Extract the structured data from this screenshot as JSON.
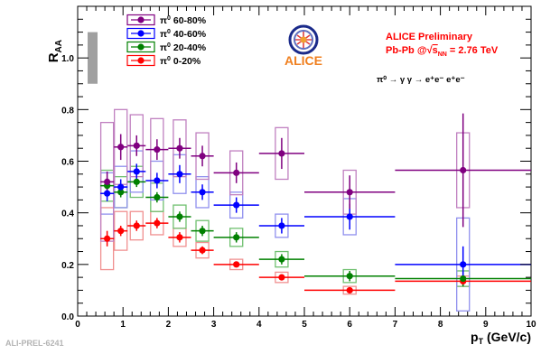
{
  "chart_data": {
    "type": "scatter",
    "xlabel_main": "p",
    "xlabel_sub": "T",
    "xlabel_unit": " (GeV/c)",
    "ylabel_main": "R",
    "ylabel_sub": "AA",
    "xlim": [
      0,
      10
    ],
    "ylim": [
      0,
      1.2
    ],
    "x_ticks": [
      "0",
      "1",
      "2",
      "3",
      "4",
      "5",
      "6",
      "7",
      "8",
      "9",
      "10"
    ],
    "y_ticks": [
      "0.0",
      "0.2",
      "0.4",
      "0.6",
      "0.8",
      "1.0"
    ],
    "grid": false,
    "legend_position": "top-left",
    "normalization_band": {
      "x": 0.25,
      "y_low": 0.9,
      "y_high": 1.1,
      "color": "#a0a0a0"
    },
    "annotation": {
      "title": "ALICE Preliminary",
      "system_prefix": "Pb-Pb @",
      "sqrt_symbol": "√",
      "sqrt_s": "s",
      "sqrt_sub": "NN",
      "energy": " = 2.76 TeV",
      "decay_channel": "π⁰ → γ γ → e⁺e⁻ e⁺e⁻",
      "color": "#ff0000"
    },
    "logo_text": "ALICE",
    "series": [
      {
        "name": "60-80%",
        "prefix": "π",
        "sup": "0",
        "color": "#800080",
        "sys_color": "#c080c0",
        "points": [
          {
            "x": 0.65,
            "xerr": 0.15,
            "y": 0.52,
            "yerr": 0.04,
            "ysys": 0.23
          },
          {
            "x": 0.95,
            "xerr": 0.15,
            "y": 0.655,
            "yerr": 0.05,
            "ysys": 0.145
          },
          {
            "x": 1.3,
            "xerr": 0.2,
            "y": 0.66,
            "yerr": 0.04,
            "ysys": 0.12
          },
          {
            "x": 1.75,
            "xerr": 0.25,
            "y": 0.645,
            "yerr": 0.04,
            "ysys": 0.12
          },
          {
            "x": 2.25,
            "xerr": 0.25,
            "y": 0.65,
            "yerr": 0.04,
            "ysys": 0.11
          },
          {
            "x": 2.75,
            "xerr": 0.25,
            "y": 0.62,
            "yerr": 0.04,
            "ysys": 0.09
          },
          {
            "x": 3.5,
            "xerr": 0.5,
            "y": 0.555,
            "yerr": 0.04,
            "ysys": 0.085
          },
          {
            "x": 4.5,
            "xerr": 0.5,
            "y": 0.63,
            "yerr": 0.06,
            "ysys": 0.1
          },
          {
            "x": 6.0,
            "xerr": 1.0,
            "y": 0.48,
            "yerr": 0.065,
            "ysys": 0.085
          },
          {
            "x": 8.5,
            "xerr": 1.5,
            "y": 0.565,
            "yerr": 0.22,
            "ysys": 0.145
          }
        ]
      },
      {
        "name": "40-60%",
        "prefix": "π",
        "sup": "0",
        "color": "#0000ff",
        "sys_color": "#9090ee",
        "points": [
          {
            "x": 0.65,
            "xerr": 0.15,
            "y": 0.475,
            "yerr": 0.03,
            "ysys": 0.08
          },
          {
            "x": 0.95,
            "xerr": 0.15,
            "y": 0.5,
            "yerr": 0.03,
            "ysys": 0.08
          },
          {
            "x": 1.3,
            "xerr": 0.2,
            "y": 0.56,
            "yerr": 0.03,
            "ysys": 0.08
          },
          {
            "x": 1.75,
            "xerr": 0.25,
            "y": 0.525,
            "yerr": 0.03,
            "ysys": 0.075
          },
          {
            "x": 2.25,
            "xerr": 0.25,
            "y": 0.55,
            "yerr": 0.035,
            "ysys": 0.075
          },
          {
            "x": 2.75,
            "xerr": 0.25,
            "y": 0.48,
            "yerr": 0.03,
            "ysys": 0.06
          },
          {
            "x": 3.5,
            "xerr": 0.5,
            "y": 0.43,
            "yerr": 0.03,
            "ysys": 0.05
          },
          {
            "x": 4.5,
            "xerr": 0.5,
            "y": 0.35,
            "yerr": 0.03,
            "ysys": 0.045
          },
          {
            "x": 6.0,
            "xerr": 1.0,
            "y": 0.385,
            "yerr": 0.05,
            "ysys": 0.07
          },
          {
            "x": 8.5,
            "xerr": 1.5,
            "y": 0.2,
            "yerr": 0.07,
            "ysys": 0.18
          }
        ]
      },
      {
        "name": "20-40%",
        "prefix": "π",
        "sup": "0",
        "color": "#008000",
        "sys_color": "#70c070",
        "points": [
          {
            "x": 0.65,
            "xerr": 0.15,
            "y": 0.505,
            "yerr": 0.03,
            "ysys": 0.06
          },
          {
            "x": 0.95,
            "xerr": 0.15,
            "y": 0.48,
            "yerr": 0.02,
            "ysys": 0.06
          },
          {
            "x": 1.3,
            "xerr": 0.2,
            "y": 0.52,
            "yerr": 0.02,
            "ysys": 0.06
          },
          {
            "x": 1.75,
            "xerr": 0.25,
            "y": 0.46,
            "yerr": 0.02,
            "ysys": 0.055
          },
          {
            "x": 2.25,
            "xerr": 0.25,
            "y": 0.385,
            "yerr": 0.02,
            "ysys": 0.045
          },
          {
            "x": 2.75,
            "xerr": 0.25,
            "y": 0.33,
            "yerr": 0.02,
            "ysys": 0.04
          },
          {
            "x": 3.5,
            "xerr": 0.5,
            "y": 0.305,
            "yerr": 0.02,
            "ysys": 0.035
          },
          {
            "x": 4.5,
            "xerr": 0.5,
            "y": 0.22,
            "yerr": 0.02,
            "ysys": 0.03
          },
          {
            "x": 6.0,
            "xerr": 1.0,
            "y": 0.155,
            "yerr": 0.02,
            "ysys": 0.025
          },
          {
            "x": 8.5,
            "xerr": 1.5,
            "y": 0.145,
            "yerr": 0.03,
            "ysys": 0.03
          }
        ]
      },
      {
        "name": "0-20%",
        "prefix": "π",
        "sup": "0",
        "color": "#ff0000",
        "sys_color": "#f09090",
        "points": [
          {
            "x": 0.65,
            "xerr": 0.15,
            "y": 0.3,
            "yerr": 0.03,
            "ysys": 0.12
          },
          {
            "x": 0.95,
            "xerr": 0.15,
            "y": 0.33,
            "yerr": 0.02,
            "ysys": 0.075
          },
          {
            "x": 1.3,
            "xerr": 0.2,
            "y": 0.35,
            "yerr": 0.02,
            "ysys": 0.055
          },
          {
            "x": 1.75,
            "xerr": 0.25,
            "y": 0.36,
            "yerr": 0.02,
            "ysys": 0.045
          },
          {
            "x": 2.25,
            "xerr": 0.25,
            "y": 0.305,
            "yerr": 0.02,
            "ysys": 0.035
          },
          {
            "x": 2.75,
            "xerr": 0.25,
            "y": 0.255,
            "yerr": 0.015,
            "ysys": 0.03
          },
          {
            "x": 3.5,
            "xerr": 0.5,
            "y": 0.2,
            "yerr": 0.01,
            "ysys": 0.02
          },
          {
            "x": 4.5,
            "xerr": 0.5,
            "y": 0.15,
            "yerr": 0.01,
            "ysys": 0.02
          },
          {
            "x": 6.0,
            "xerr": 1.0,
            "y": 0.1,
            "yerr": 0.01,
            "ysys": 0.015
          },
          {
            "x": 8.5,
            "xerr": 1.5,
            "y": 0.135,
            "yerr": 0.02,
            "ysys": 0.02
          }
        ]
      }
    ]
  },
  "footer": {
    "figure_id": "ALI-PREL-6241",
    "figure_id_color": "#b4b4b4"
  }
}
